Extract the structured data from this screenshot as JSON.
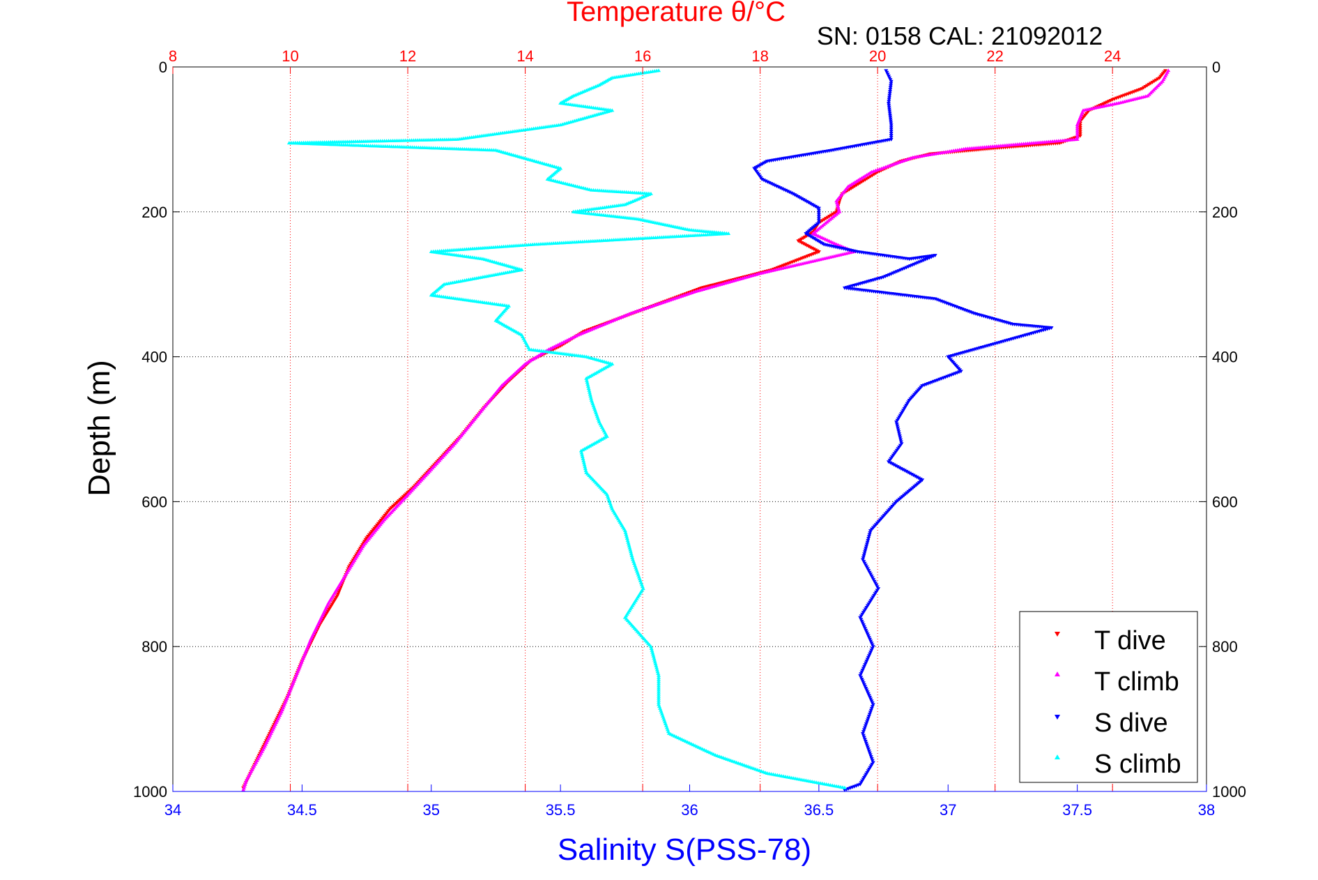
{
  "colors": {
    "t_dive": "#ff0000",
    "t_climb": "#ff00ff",
    "s_dive": "#0000ff",
    "s_climb": "#00ffff",
    "temp_axis": "#ff0000",
    "sal_axis": "#0000ff",
    "depth_axis": "#000000",
    "grid_depth": "#000000",
    "grid_temp": "#ff0000"
  },
  "chart_data": {
    "type": "scatter",
    "title": "Temperature θ/°C",
    "subtitle": "SN: 0158  CAL: 21092012",
    "ylabel": "Depth (m)",
    "xlabel_bottom": "Salinity S(PSS-78)",
    "xlabel_top": "Temperature θ/°C",
    "ylim": [
      0,
      1000
    ],
    "y_reversed": true,
    "y_ticks": [
      "0",
      "200",
      "400",
      "600",
      "800",
      "1000"
    ],
    "temp_xlim": [
      8,
      25.6
    ],
    "temp_ticks": [
      "8",
      "10",
      "12",
      "14",
      "16",
      "18",
      "20",
      "22",
      "24"
    ],
    "sal_xlim": [
      34,
      38
    ],
    "sal_ticks": [
      "34",
      "34.5",
      "35",
      "35.5",
      "36",
      "36.5",
      "37",
      "37.5",
      "38"
    ],
    "grid": true,
    "legend_position": "bottom-right",
    "series": [
      {
        "name": "T dive",
        "axis": "temperature",
        "marker": "triangle-down",
        "points": [
          [
            24.9,
            5
          ],
          [
            24.8,
            15
          ],
          [
            24.5,
            30
          ],
          [
            24.0,
            45
          ],
          [
            23.6,
            60
          ],
          [
            23.45,
            75
          ],
          [
            23.45,
            95
          ],
          [
            23.1,
            105
          ],
          [
            22.0,
            112
          ],
          [
            20.9,
            120
          ],
          [
            20.4,
            130
          ],
          [
            20.0,
            145
          ],
          [
            19.7,
            160
          ],
          [
            19.4,
            175
          ],
          [
            19.35,
            185
          ],
          [
            19.3,
            200
          ],
          [
            19.0,
            215
          ],
          [
            18.9,
            228
          ],
          [
            18.65,
            240
          ],
          [
            19.0,
            255
          ],
          [
            18.2,
            280
          ],
          [
            17.0,
            305
          ],
          [
            16.0,
            335
          ],
          [
            15.0,
            365
          ],
          [
            14.6,
            385
          ],
          [
            14.1,
            405
          ],
          [
            13.7,
            435
          ],
          [
            13.3,
            470
          ],
          [
            12.9,
            510
          ],
          [
            12.5,
            545
          ],
          [
            12.1,
            580
          ],
          [
            11.7,
            610
          ],
          [
            11.3,
            650
          ],
          [
            11.0,
            690
          ],
          [
            10.8,
            730
          ],
          [
            10.5,
            770
          ],
          [
            10.2,
            820
          ],
          [
            9.95,
            870
          ],
          [
            9.65,
            920
          ],
          [
            9.35,
            970
          ],
          [
            9.2,
            995
          ]
        ]
      },
      {
        "name": "T climb",
        "axis": "temperature",
        "marker": "triangle-up",
        "points": [
          [
            24.95,
            5
          ],
          [
            24.85,
            20
          ],
          [
            24.6,
            40
          ],
          [
            24.1,
            50
          ],
          [
            23.5,
            60
          ],
          [
            23.4,
            80
          ],
          [
            23.4,
            100
          ],
          [
            21.5,
            113
          ],
          [
            20.6,
            125
          ],
          [
            19.9,
            145
          ],
          [
            19.5,
            165
          ],
          [
            19.3,
            185
          ],
          [
            19.35,
            200
          ],
          [
            18.9,
            230
          ],
          [
            19.3,
            245
          ],
          [
            19.6,
            255
          ],
          [
            18.0,
            285
          ],
          [
            16.9,
            310
          ],
          [
            15.8,
            340
          ],
          [
            14.9,
            370
          ],
          [
            14.4,
            390
          ],
          [
            14.0,
            410
          ],
          [
            13.6,
            440
          ],
          [
            13.2,
            480
          ],
          [
            12.8,
            520
          ],
          [
            12.35,
            560
          ],
          [
            11.95,
            595
          ],
          [
            11.6,
            625
          ],
          [
            11.25,
            660
          ],
          [
            10.95,
            700
          ],
          [
            10.65,
            740
          ],
          [
            10.35,
            790
          ],
          [
            10.1,
            840
          ],
          [
            9.85,
            890
          ],
          [
            9.55,
            940
          ],
          [
            9.25,
            985
          ],
          [
            9.2,
            998
          ]
        ]
      },
      {
        "name": "S dive",
        "axis": "salinity",
        "marker": "triangle-down",
        "points": [
          [
            36.76,
            5
          ],
          [
            36.78,
            20
          ],
          [
            36.77,
            50
          ],
          [
            36.78,
            80
          ],
          [
            36.78,
            100
          ],
          [
            36.55,
            115
          ],
          [
            36.3,
            130
          ],
          [
            36.25,
            140
          ],
          [
            36.28,
            155
          ],
          [
            36.4,
            175
          ],
          [
            36.5,
            195
          ],
          [
            36.5,
            215
          ],
          [
            36.45,
            230
          ],
          [
            36.52,
            245
          ],
          [
            36.65,
            255
          ],
          [
            36.85,
            265
          ],
          [
            36.95,
            260
          ],
          [
            36.75,
            290
          ],
          [
            36.6,
            305
          ],
          [
            36.95,
            320
          ],
          [
            37.1,
            340
          ],
          [
            37.25,
            355
          ],
          [
            37.4,
            360
          ],
          [
            37.2,
            380
          ],
          [
            37.0,
            400
          ],
          [
            37.05,
            420
          ],
          [
            36.9,
            440
          ],
          [
            36.85,
            460
          ],
          [
            36.8,
            490
          ],
          [
            36.82,
            520
          ],
          [
            36.77,
            545
          ],
          [
            36.9,
            570
          ],
          [
            36.8,
            600
          ],
          [
            36.7,
            640
          ],
          [
            36.67,
            680
          ],
          [
            36.73,
            720
          ],
          [
            36.66,
            760
          ],
          [
            36.71,
            800
          ],
          [
            36.66,
            840
          ],
          [
            36.71,
            880
          ],
          [
            36.67,
            920
          ],
          [
            36.71,
            960
          ],
          [
            36.66,
            990
          ],
          [
            36.6,
            998
          ]
        ]
      },
      {
        "name": "S climb",
        "axis": "salinity",
        "marker": "triangle-up",
        "points": [
          [
            35.88,
            5
          ],
          [
            35.7,
            15
          ],
          [
            35.65,
            25
          ],
          [
            35.55,
            40
          ],
          [
            35.5,
            50
          ],
          [
            35.7,
            60
          ],
          [
            35.5,
            80
          ],
          [
            35.1,
            100
          ],
          [
            34.45,
            105
          ],
          [
            35.25,
            115
          ],
          [
            35.4,
            130
          ],
          [
            35.5,
            140
          ],
          [
            35.45,
            155
          ],
          [
            35.62,
            170
          ],
          [
            35.85,
            175
          ],
          [
            35.75,
            190
          ],
          [
            35.55,
            200
          ],
          [
            35.8,
            210
          ],
          [
            36.0,
            225
          ],
          [
            36.15,
            230
          ],
          [
            35.4,
            245
          ],
          [
            35.0,
            255
          ],
          [
            35.2,
            265
          ],
          [
            35.35,
            280
          ],
          [
            35.05,
            300
          ],
          [
            35.0,
            315
          ],
          [
            35.3,
            330
          ],
          [
            35.25,
            350
          ],
          [
            35.35,
            370
          ],
          [
            35.38,
            390
          ],
          [
            35.6,
            400
          ],
          [
            35.7,
            410
          ],
          [
            35.6,
            430
          ],
          [
            35.62,
            460
          ],
          [
            35.65,
            490
          ],
          [
            35.68,
            510
          ],
          [
            35.58,
            530
          ],
          [
            35.6,
            560
          ],
          [
            35.68,
            590
          ],
          [
            35.7,
            610
          ],
          [
            35.75,
            640
          ],
          [
            35.78,
            680
          ],
          [
            35.82,
            720
          ],
          [
            35.75,
            760
          ],
          [
            35.85,
            800
          ],
          [
            35.88,
            840
          ],
          [
            35.88,
            880
          ],
          [
            35.92,
            920
          ],
          [
            36.1,
            950
          ],
          [
            36.3,
            975
          ],
          [
            36.6,
            995
          ]
        ]
      }
    ]
  }
}
